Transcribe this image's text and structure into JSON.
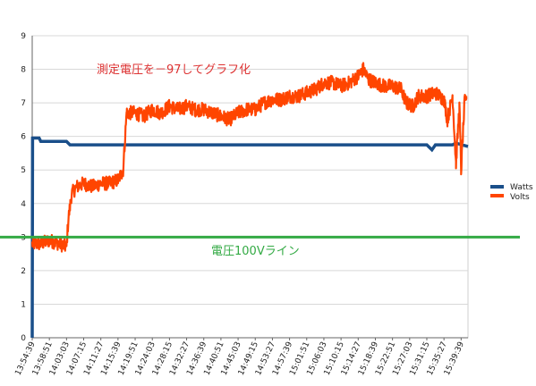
{
  "chart_data": {
    "type": "line",
    "title": "",
    "xlabel": "",
    "ylabel": "",
    "ylim": [
      0,
      9
    ],
    "yticks": [
      0,
      1,
      2,
      3,
      4,
      5,
      6,
      7,
      8,
      9
    ],
    "grid": true,
    "legend_position": "right",
    "x_tick_labels": [
      "13:54:39",
      "13:58:51",
      "14:03:03",
      "14:07:15",
      "14:11:27",
      "14:15:39",
      "14:19:51",
      "14:24:03",
      "14:28:15",
      "14:32:27",
      "14:36:39",
      "14:40:51",
      "14:45:03",
      "14:49:15",
      "14:53:27",
      "14:57:39",
      "15:01:51",
      "15:06:03",
      "15:10:15",
      "15:14:27",
      "15:18:39",
      "15:22:51",
      "15:27:03",
      "15:31:15",
      "15:35:27",
      "15:39:39"
    ],
    "series": [
      {
        "name": "Watts",
        "color": "#1a4f8a",
        "points": [
          [
            0,
            0
          ],
          [
            0.02,
            5.95
          ],
          [
            0.4,
            5.95
          ],
          [
            0.5,
            5.85
          ],
          [
            2.0,
            5.85
          ],
          [
            2.2,
            5.75
          ],
          [
            23.0,
            5.75
          ],
          [
            23.3,
            5.6
          ],
          [
            23.5,
            5.75
          ],
          [
            24.5,
            5.75
          ],
          [
            24.7,
            5.8
          ],
          [
            25.4,
            5.7
          ]
        ]
      },
      {
        "name": "Volts",
        "color": "#ff4500",
        "points": [
          [
            0,
            2.8
          ],
          [
            0.5,
            2.8
          ],
          [
            1.0,
            2.9
          ],
          [
            1.6,
            2.8
          ],
          [
            2.0,
            2.7
          ],
          [
            2.1,
            3.5
          ],
          [
            2.3,
            4.3
          ],
          [
            2.6,
            4.5
          ],
          [
            3.0,
            4.6
          ],
          [
            3.5,
            4.5
          ],
          [
            4.0,
            4.6
          ],
          [
            4.5,
            4.6
          ],
          [
            5.0,
            4.7
          ],
          [
            5.3,
            5.0
          ],
          [
            5.5,
            6.7
          ],
          [
            6.0,
            6.7
          ],
          [
            6.5,
            6.6
          ],
          [
            7.0,
            6.8
          ],
          [
            7.5,
            6.7
          ],
          [
            8.0,
            6.9
          ],
          [
            8.5,
            6.8
          ],
          [
            9.0,
            6.9
          ],
          [
            9.5,
            6.8
          ],
          [
            10.0,
            6.8
          ],
          [
            10.5,
            6.7
          ],
          [
            11.0,
            6.6
          ],
          [
            11.5,
            6.5
          ],
          [
            12.0,
            6.7
          ],
          [
            12.5,
            6.8
          ],
          [
            13.0,
            6.8
          ],
          [
            13.5,
            7.0
          ],
          [
            14.0,
            7.1
          ],
          [
            14.5,
            7.1
          ],
          [
            15.0,
            7.2
          ],
          [
            15.5,
            7.2
          ],
          [
            16.0,
            7.3
          ],
          [
            16.5,
            7.4
          ],
          [
            17.0,
            7.6
          ],
          [
            17.5,
            7.6
          ],
          [
            18.0,
            7.5
          ],
          [
            18.5,
            7.6
          ],
          [
            19.0,
            7.8
          ],
          [
            19.3,
            8.0
          ],
          [
            19.6,
            7.7
          ],
          [
            20.0,
            7.6
          ],
          [
            20.5,
            7.5
          ],
          [
            21.0,
            7.5
          ],
          [
            21.5,
            7.4
          ],
          [
            21.8,
            7.0
          ],
          [
            22.2,
            6.9
          ],
          [
            22.5,
            7.2
          ],
          [
            23.0,
            7.2
          ],
          [
            23.5,
            7.3
          ],
          [
            24.0,
            7.1
          ],
          [
            24.2,
            6.5
          ],
          [
            24.5,
            7.2
          ],
          [
            24.7,
            5.2
          ],
          [
            24.9,
            6.9
          ],
          [
            25.0,
            5.0
          ],
          [
            25.2,
            7.0
          ],
          [
            25.3,
            7.2
          ]
        ]
      }
    ],
    "reference_line": {
      "y": 3,
      "color": "#33aa44"
    },
    "annotations": [
      {
        "text": "測定電圧を－97してグラフ化",
        "color": "#dd3333"
      },
      {
        "text": "電圧100Vライン",
        "color": "#33aa44"
      }
    ]
  }
}
